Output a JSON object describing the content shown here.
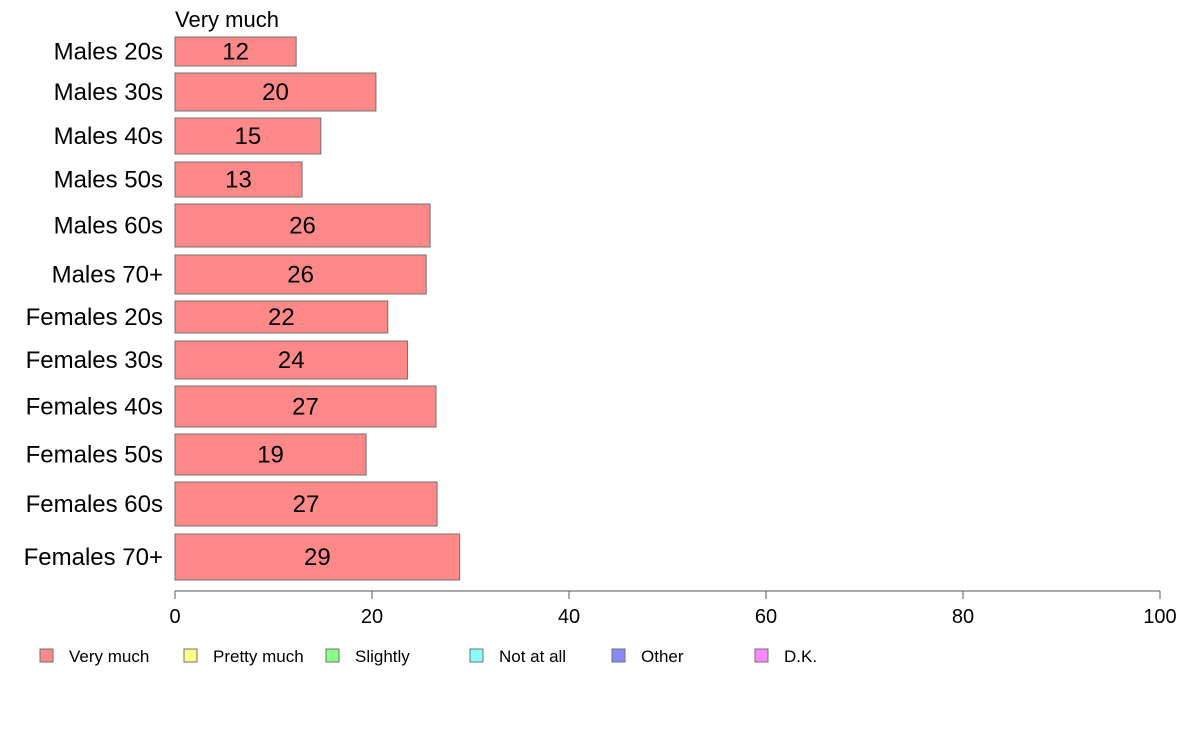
{
  "chart_data": {
    "type": "bar",
    "orientation": "horizontal",
    "stacked": true,
    "series_header": "Very much",
    "categories": [
      "Males 20s",
      "Males 30s",
      "Males 40s",
      "Males 50s",
      "Males 60s",
      "Males 70+",
      "Females 20s",
      "Females 30s",
      "Females 40s",
      "Females 50s",
      "Females 60s",
      "Females 70+"
    ],
    "series": [
      {
        "name": "Very much",
        "color": "#ff8888",
        "values": [
          12.3,
          20.4,
          14.8,
          12.9,
          25.9,
          25.5,
          21.6,
          23.6,
          26.5,
          19.4,
          26.6,
          28.9
        ],
        "labels": [
          "12",
          "20",
          "15",
          "13",
          "26",
          "26",
          "22",
          "24",
          "27",
          "19",
          "27",
          "29"
        ]
      }
    ],
    "legend": [
      {
        "label": "Very much",
        "color": "#ff8888"
      },
      {
        "label": "Pretty much",
        "color": "#ffff88"
      },
      {
        "label": "Slightly",
        "color": "#88ff88"
      },
      {
        "label": "Not at all",
        "color": "#88ffff"
      },
      {
        "label": "Other",
        "color": "#8888ff"
      },
      {
        "label": "D.K.",
        "color": "#ff88ff"
      }
    ],
    "legend_position": "bottom",
    "xlim": [
      0,
      100
    ],
    "xticks": [
      0,
      20,
      40,
      60,
      80,
      100
    ],
    "grid": false
  }
}
